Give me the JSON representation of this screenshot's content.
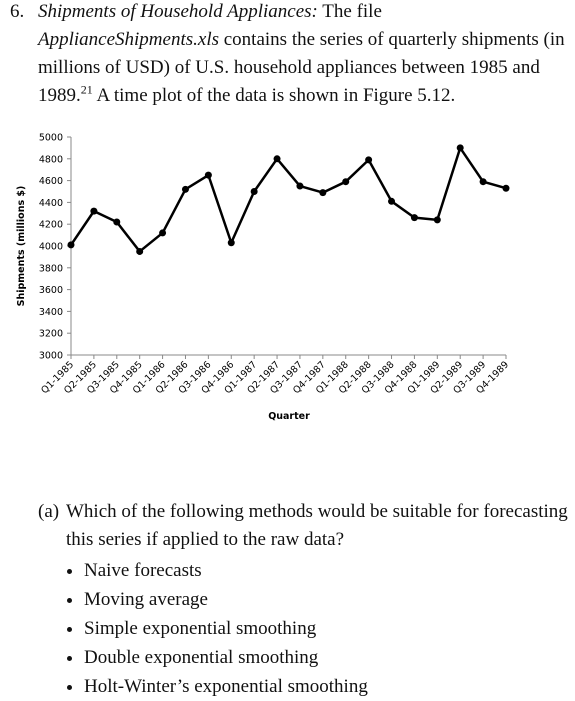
{
  "problem": {
    "number": "6.",
    "title": "Shipments of Household Appliances:",
    "text_1": " The file ",
    "file": "ApplianceShipments.xls",
    "text_2": " contains the series of quarterly shipments (in millions of USD) of U.S. household appliances between 1985 and 1989.",
    "footnote": "21",
    "text_3": " A time plot of the data is shown in Figure 5.12."
  },
  "chart_data": {
    "type": "line",
    "y_label": "Shipments (millions $)",
    "x_label": "Quarter",
    "categories": [
      "Q1-1985",
      "Q2-1985",
      "Q3-1985",
      "Q4-1985",
      "Q1-1986",
      "Q2-1986",
      "Q3-1986",
      "Q4-1986",
      "Q1-1987",
      "Q2-1987",
      "Q3-1987",
      "Q4-1987",
      "Q1-1988",
      "Q2-1988",
      "Q3-1988",
      "Q4-1988",
      "Q1-1989",
      "Q2-1989",
      "Q3-1989",
      "Q4-1989"
    ],
    "values": [
      4010,
      4320,
      4220,
      3950,
      4120,
      4520,
      4650,
      4030,
      4500,
      4800,
      4550,
      4490,
      4590,
      4790,
      4410,
      4260,
      4240,
      4900,
      4590,
      4530
    ],
    "color": "#000000",
    "ylim": [
      3000,
      5000
    ],
    "yticks": [
      3000,
      3200,
      3400,
      3600,
      3800,
      4000,
      4200,
      4400,
      4600,
      4800,
      5000
    ],
    "grid": false
  },
  "question": {
    "label": "(a)",
    "text": "Which of the following methods would be suitable for forecasting this series if applied to the raw data?",
    "options": [
      "Naive forecasts",
      "Moving average",
      "Simple exponential smoothing",
      "Double exponential smoothing",
      "Holt-Winter’s exponential smoothing"
    ]
  }
}
